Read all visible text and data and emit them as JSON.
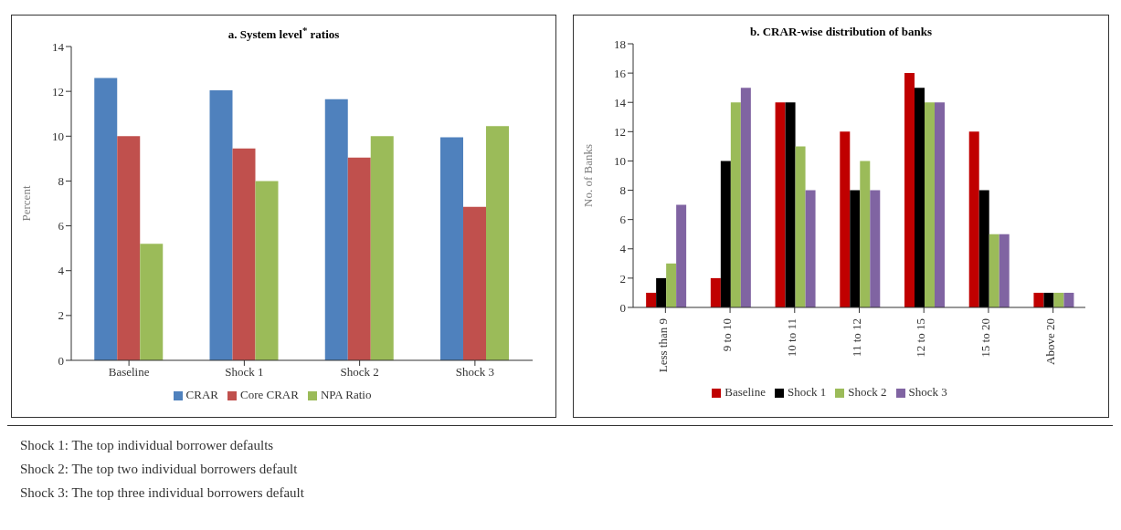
{
  "chart_data": [
    {
      "type": "bar",
      "title": "a. System level$^{*}$ ratios",
      "ylabel": "Percent",
      "categories": [
        "Baseline",
        "Shock 1",
        "Shock 2",
        "Shock 3"
      ],
      "series": [
        {
          "name": "CRAR",
          "color": "#4f81bd",
          "values": [
            12.6,
            12.05,
            11.65,
            9.95
          ]
        },
        {
          "name": "Core CRAR",
          "color": "#c0504d",
          "values": [
            10.0,
            9.45,
            9.05,
            6.85
          ]
        },
        {
          "name": "NPA Ratio",
          "color": "#9bbb59",
          "values": [
            5.2,
            8.0,
            10.0,
            10.45
          ]
        }
      ],
      "ylim": [
        0,
        14
      ],
      "yticks": [
        0,
        2,
        4,
        6,
        8,
        10,
        12,
        14
      ],
      "legend": "bottom",
      "annotations": [
        "Shock 1: The top individual borrower defaults",
        "Shock 2: The top two individual borrowers default",
        "Shock 3: The top three individual borrowers default"
      ]
    },
    {
      "type": "bar",
      "title": "b. CRAR-wise distribution of banks",
      "ylabel": "No. of Banks",
      "categories": [
        "Less than 9",
        "9 to 10",
        "10 to 11",
        "11 to 12",
        "12 to 15",
        "15 to 20",
        "Above 20"
      ],
      "series": [
        {
          "name": "Baseline",
          "color": "#c00000",
          "values": [
            1,
            2,
            14,
            12,
            16,
            12,
            1
          ]
        },
        {
          "name": "Shock 1",
          "color": "#000000",
          "values": [
            2,
            10,
            14,
            8,
            15,
            8,
            1
          ]
        },
        {
          "name": "Shock 2",
          "color": "#9bbb59",
          "values": [
            3,
            14,
            11,
            10,
            14,
            5,
            1
          ]
        },
        {
          "name": "Shock 3",
          "color": "#8064a2",
          "values": [
            7,
            15,
            8,
            8,
            14,
            5,
            1
          ]
        }
      ],
      "ylim": [
        0,
        18
      ],
      "yticks": [
        0,
        2,
        4,
        6,
        8,
        10,
        12,
        14,
        16,
        18
      ],
      "legend": "bottom"
    }
  ]
}
